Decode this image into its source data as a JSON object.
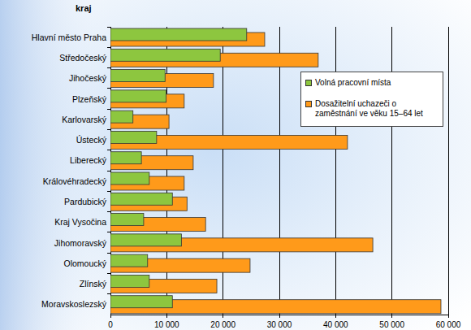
{
  "chart_data": {
    "type": "bar",
    "orientation": "horizontal",
    "grid": true,
    "legend": "right",
    "ylabel": "kraj",
    "categories": [
      "Hlavní město Praha",
      "Středočeský",
      "Jihočeský",
      "Plzeňský",
      "Karlovarský",
      "Ústecký",
      "Liberecký",
      "Královéhradecký",
      "Pardubický",
      "Kraj Vysočina",
      "Jihomoravský",
      "Olomoucký",
      "Zlínský",
      "Moravskoslezský"
    ],
    "series": [
      {
        "name": "Volná pracovní místa",
        "color": "#8dc63f",
        "values": [
          24200,
          19500,
          9700,
          9900,
          4000,
          8200,
          5500,
          6900,
          11000,
          5900,
          12600,
          6600,
          6900,
          11000
        ]
      },
      {
        "name": "Dosažitelní uchazeči o zaměstnání ve věku 15–64 let",
        "color": "#ff9a1a",
        "values": [
          27400,
          36900,
          18300,
          13100,
          10400,
          42100,
          14700,
          13100,
          13600,
          16900,
          46600,
          24800,
          18900,
          58700
        ]
      }
    ],
    "xlim": [
      0,
      60000
    ],
    "xticks": [
      0,
      {
        "value": 10000,
        "label": "10 000"
      },
      {
        "value": 20000,
        "label": "20 000"
      },
      {
        "value": 30000,
        "label": "30 000"
      },
      {
        "value": 40000,
        "label": "40 000"
      },
      {
        "value": 50000,
        "label": "50 000"
      },
      {
        "value": 60000,
        "label": "60 000"
      }
    ]
  }
}
